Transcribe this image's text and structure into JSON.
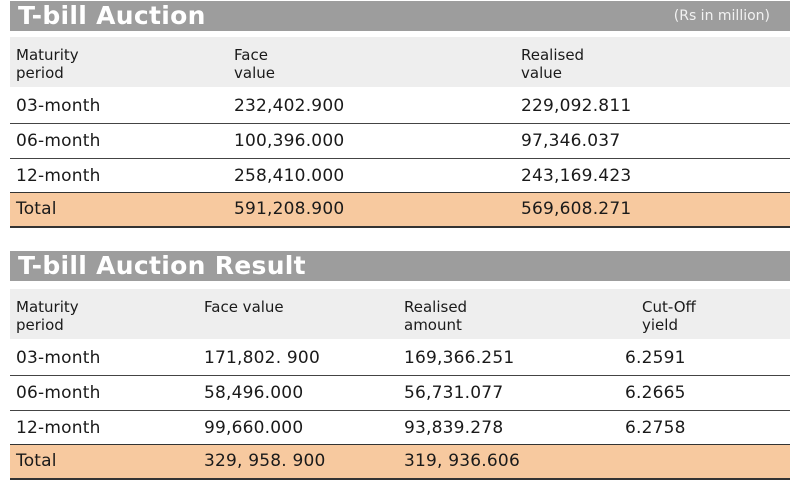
{
  "auction": {
    "title": "T-bill Auction",
    "unit": "(Rs in million)",
    "headers": [
      "Maturity\nperiod",
      "Face\nvalue",
      "Realised\nvalue"
    ],
    "rows": [
      [
        "03-month",
        "232,402.900",
        "229,092.811"
      ],
      [
        "06-month",
        "100,396.000",
        "97,346.037"
      ],
      [
        "12-month",
        "258,410.000",
        "243,169.423"
      ]
    ],
    "total": [
      "Total",
      "591,208.900",
      "569,608.271"
    ]
  },
  "result": {
    "title": "T-bill Auction Result",
    "headers": [
      "Maturity\nperiod",
      "Face value",
      "Realised\namount",
      "Cut-Off\nyield"
    ],
    "rows": [
      [
        "03-month",
        "171,802. 900",
        "169,366.251",
        "6.2591"
      ],
      [
        "06-month",
        "58,496.000",
        "56,731.077",
        "6.2665"
      ],
      [
        "12-month",
        "99,660.000",
        "93,839.278",
        "6.2758"
      ]
    ],
    "total": [
      "Total",
      "329, 958. 900",
      "319, 936.606",
      ""
    ]
  },
  "colors": {
    "title_bar": "#9d9d9d",
    "header_bg": "#eeeeee",
    "total_bg": "#f7c99f"
  }
}
